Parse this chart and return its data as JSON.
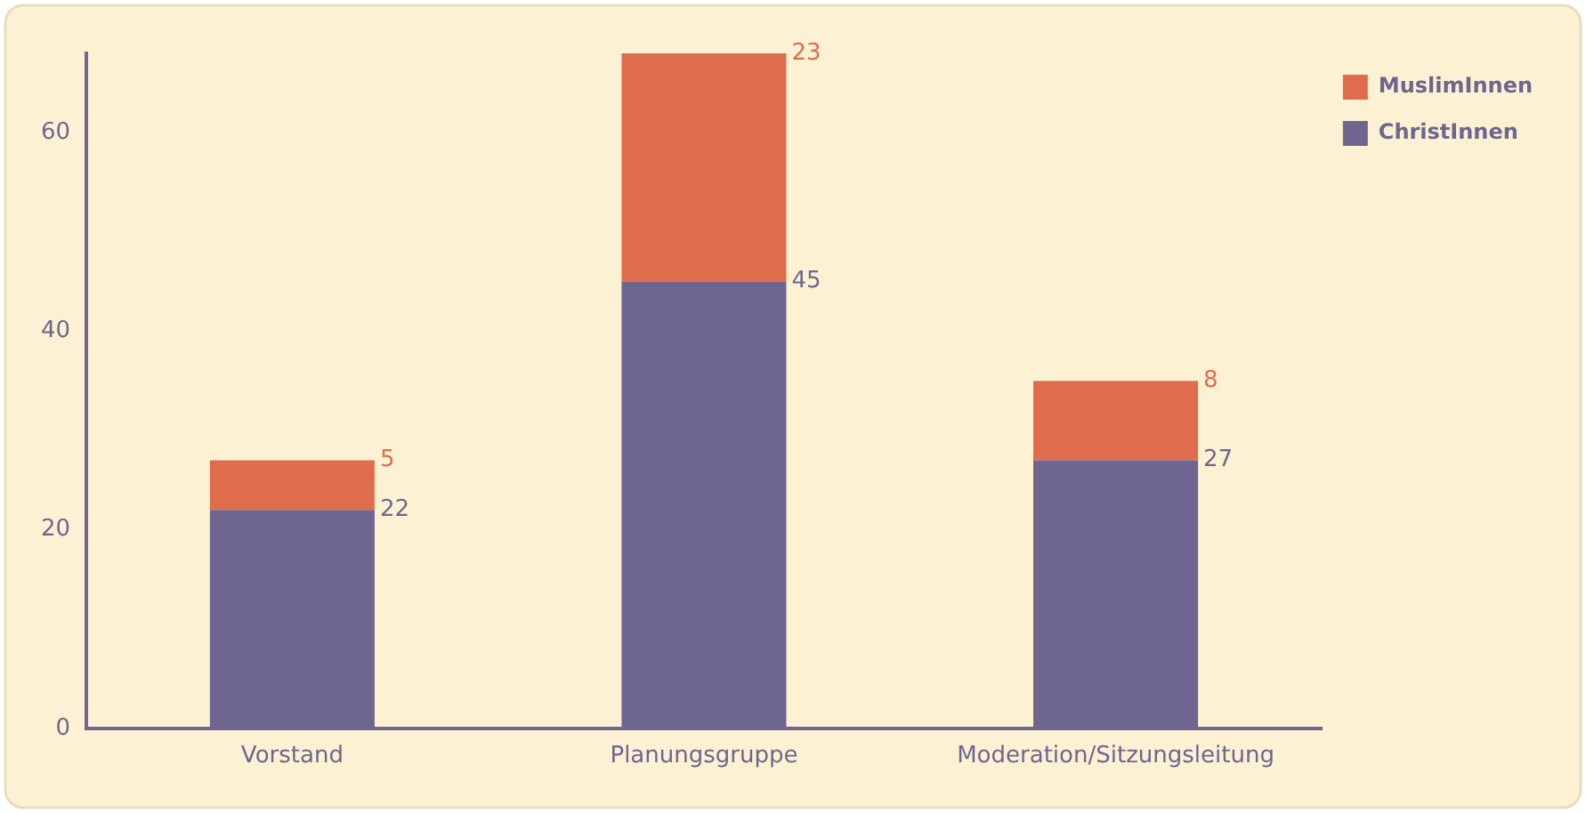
{
  "chart_data": {
    "type": "bar",
    "stacked": true,
    "categories": [
      "Vorstand",
      "Planungsgruppe",
      "Moderation/Sitzungsleitung"
    ],
    "series": [
      {
        "name": "ChristInnen",
        "color": "#6e668f",
        "values": [
          22,
          45,
          27
        ]
      },
      {
        "name": "MuslimInnen",
        "color": "#e06c4e",
        "values": [
          5,
          23,
          8
        ]
      }
    ],
    "ylim": [
      0,
      68
    ],
    "yticks": [
      0,
      20,
      40,
      60
    ],
    "grid": false,
    "legend": "top right",
    "data_labels": true
  }
}
